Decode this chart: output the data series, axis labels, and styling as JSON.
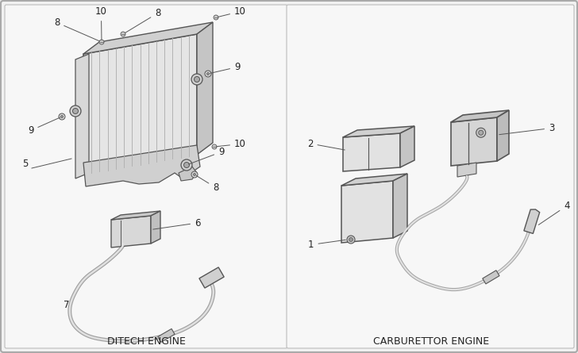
{
  "bg_outer": "#e8e8e8",
  "bg_panel": "#f0f0f0",
  "bg_inner": "#f7f7f7",
  "line_color": "#555555",
  "line_light": "#888888",
  "text_color": "#222222",
  "left_label": "DITECH ENGINE",
  "right_label": "CARBURETTOR ENGINE",
  "label_fontsize": 9,
  "number_fontsize": 8.5,
  "figsize": [
    7.28,
    4.45
  ],
  "dpi": 100
}
